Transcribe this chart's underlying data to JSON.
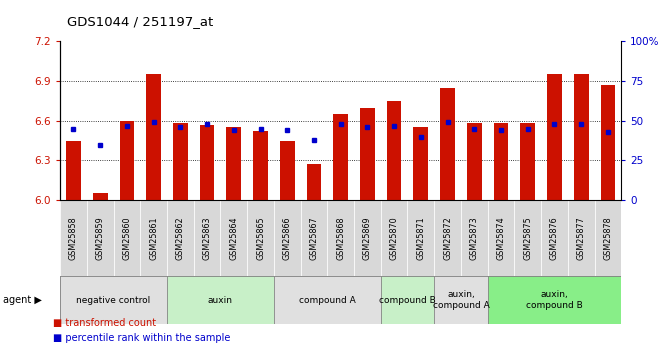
{
  "title": "GDS1044 / 251197_at",
  "samples": [
    "GSM25858",
    "GSM25859",
    "GSM25860",
    "GSM25861",
    "GSM25862",
    "GSM25863",
    "GSM25864",
    "GSM25865",
    "GSM25866",
    "GSM25867",
    "GSM25868",
    "GSM25869",
    "GSM25870",
    "GSM25871",
    "GSM25872",
    "GSM25873",
    "GSM25874",
    "GSM25875",
    "GSM25876",
    "GSM25877",
    "GSM25878"
  ],
  "transformed_count": [
    6.45,
    6.05,
    6.6,
    6.95,
    6.58,
    6.57,
    6.55,
    6.52,
    6.45,
    6.27,
    6.65,
    6.7,
    6.75,
    6.55,
    6.85,
    6.58,
    6.58,
    6.58,
    6.95,
    6.95,
    6.87
  ],
  "percentile_rank": [
    45,
    35,
    47,
    49,
    46,
    48,
    44,
    45,
    44,
    38,
    48,
    46,
    47,
    40,
    49,
    45,
    44,
    45,
    48,
    48,
    43
  ],
  "ylim_left": [
    6.0,
    7.2
  ],
  "ylim_right": [
    0,
    100
  ],
  "yticks_left": [
    6.0,
    6.3,
    6.6,
    6.9,
    7.2
  ],
  "yticks_right": [
    0,
    25,
    50,
    75,
    100
  ],
  "bar_color": "#CC1100",
  "dot_color": "#0000CC",
  "background_color": "#ffffff",
  "xticklabel_bg": "#d8d8d8",
  "agent_groups": [
    {
      "label": "negative control",
      "start": 0,
      "end": 3,
      "color": "#e0e0e0"
    },
    {
      "label": "auxin",
      "start": 4,
      "end": 7,
      "color": "#c8f0c8"
    },
    {
      "label": "compound A",
      "start": 8,
      "end": 11,
      "color": "#e0e0e0"
    },
    {
      "label": "compound B",
      "start": 12,
      "end": 13,
      "color": "#c8f0c8"
    },
    {
      "label": "auxin,\ncompound A",
      "start": 14,
      "end": 15,
      "color": "#e0e0e0"
    },
    {
      "label": "auxin,\ncompound B",
      "start": 16,
      "end": 20,
      "color": "#88ee88"
    }
  ],
  "legend_items": [
    {
      "label": "transformed count",
      "color": "#CC1100"
    },
    {
      "label": "percentile rank within the sample",
      "color": "#0000CC"
    }
  ]
}
